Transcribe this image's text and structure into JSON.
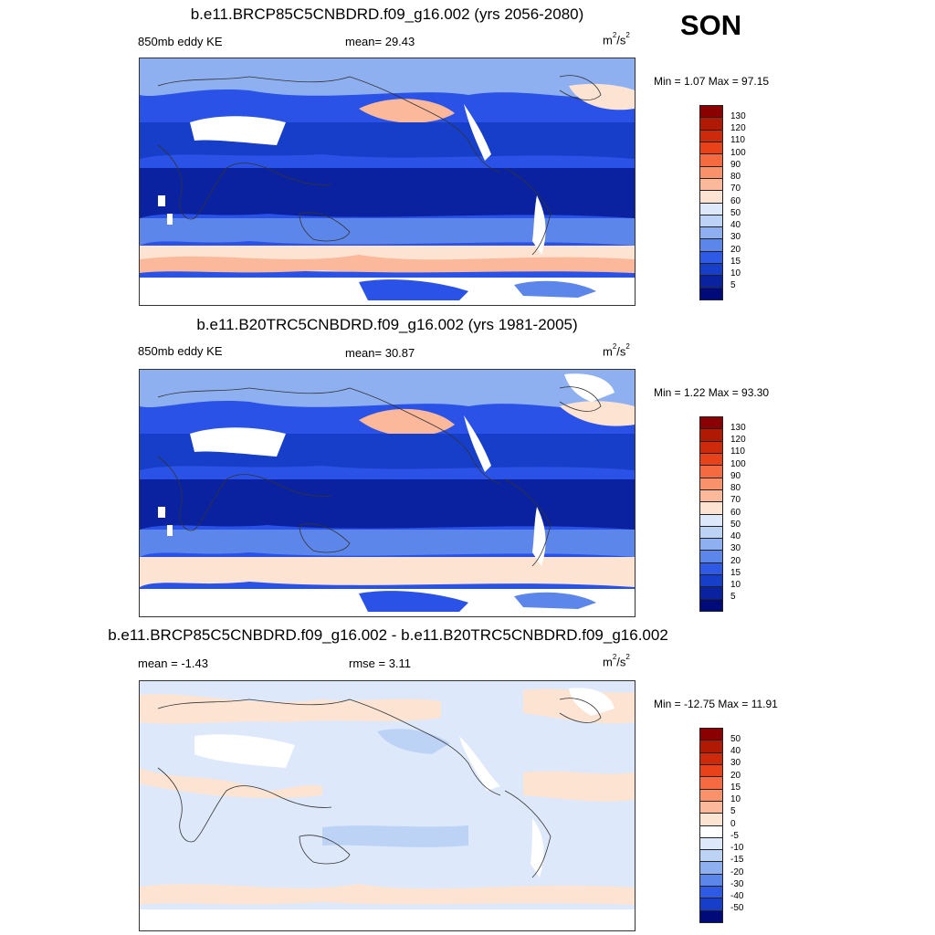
{
  "season": "SON",
  "panels": [
    {
      "title": "b.e11.BRCP85C5CNBDRD.f09_g16.002 (yrs 2056-2080)",
      "left_label": "850mb eddy KE",
      "center_label": "mean=  29.43",
      "units_base": "m",
      "units_sup1": "2",
      "units_mid": "/s",
      "units_sup2": "2",
      "minmax": "Min =   1.07 Max =  97.15"
    },
    {
      "title": "b.e11.B20TRC5CNBDRD.f09_g16.002 (yrs 1981-2005)",
      "left_label": "850mb eddy KE",
      "center_label": "mean=  30.87",
      "units_base": "m",
      "units_sup1": "2",
      "units_mid": "/s",
      "units_sup2": "2",
      "minmax": "Min =   1.22 Max =  93.30"
    },
    {
      "title": "b.e11.BRCP85C5CNBDRD.f09_g16.002 - b.e11.B20TRC5CNBDRD.f09_g16.002",
      "left_label": "mean =  -1.43",
      "center_label": "rmse =   3.11",
      "units_base": "m",
      "units_sup1": "2",
      "units_mid": "/s",
      "units_sup2": "2",
      "minmax": "Min = -12.75 Max =  11.91"
    }
  ],
  "colorbar_abs": {
    "labels": [
      "130",
      "120",
      "110",
      "100",
      "90",
      "80",
      "70",
      "60",
      "50",
      "40",
      "30",
      "20",
      "15",
      "10",
      "5"
    ],
    "colors": [
      "#8b0000",
      "#b01a05",
      "#cc2a0a",
      "#e8421a",
      "#f56a40",
      "#f9916a",
      "#fbb89a",
      "#fde3d2",
      "#dde9fb",
      "#bdd3f6",
      "#8fb0f0",
      "#5d86ea",
      "#2f5ae6",
      "#163ec8",
      "#0a22a0",
      "#000a78"
    ]
  },
  "colorbar_diff": {
    "labels": [
      "50",
      "40",
      "30",
      "20",
      "15",
      "10",
      "5",
      "0",
      "-5",
      "-10",
      "-15",
      "-20",
      "-30",
      "-40",
      "-50"
    ],
    "colors": [
      "#8b0000",
      "#b01a05",
      "#cc2a0a",
      "#e8421a",
      "#f56a40",
      "#f9916a",
      "#fbb89a",
      "#fde3d2",
      "#ffffff",
      "#dde9fb",
      "#bdd3f6",
      "#8fb0f0",
      "#5d86ea",
      "#2f5ae6",
      "#163ec8",
      "#000a78"
    ]
  }
}
